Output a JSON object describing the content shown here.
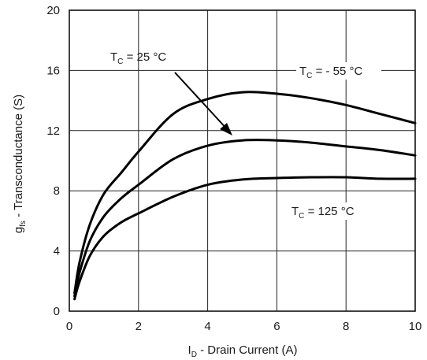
{
  "chart_data": {
    "type": "line",
    "title": "",
    "xlabel": {
      "main": "I",
      "sub": "D",
      "rest": " - Drain Current (A)"
    },
    "ylabel": {
      "main": "g",
      "sub": "fs",
      "rest": " - Transconductance (S)"
    },
    "xlim": [
      0,
      10
    ],
    "ylim": [
      0,
      20
    ],
    "x_ticks": [
      0,
      2,
      4,
      6,
      8,
      10
    ],
    "x_tick_labels": [
      "0",
      "2",
      "4",
      "6",
      "8",
      "10"
    ],
    "y_ticks": [
      0,
      4,
      8,
      12,
      16,
      20
    ],
    "y_tick_labels": [
      "0",
      "4",
      "8",
      "12",
      "16",
      "20"
    ],
    "grid": true,
    "series": [
      {
        "name": "TC = - 55 °C",
        "x": [
          0.15,
          0.3,
          0.6,
          1.0,
          1.5,
          2.0,
          3.0,
          4.0,
          5.0,
          6.0,
          7.0,
          8.0,
          9.0,
          10.0
        ],
        "y": [
          1.2,
          3.3,
          5.8,
          7.8,
          9.2,
          10.6,
          13.1,
          14.1,
          14.55,
          14.45,
          14.15,
          13.7,
          13.1,
          12.5
        ]
      },
      {
        "name": "TC = 25 °C",
        "x": [
          0.15,
          0.3,
          0.6,
          1.0,
          1.5,
          2.0,
          3.0,
          4.0,
          5.0,
          6.0,
          7.0,
          8.0,
          9.0,
          10.0
        ],
        "y": [
          1.0,
          2.6,
          4.7,
          6.3,
          7.5,
          8.4,
          10.1,
          11.0,
          11.35,
          11.35,
          11.2,
          10.95,
          10.7,
          10.35
        ]
      },
      {
        "name": "TC = 125 °C",
        "x": [
          0.15,
          0.3,
          0.6,
          1.0,
          1.5,
          2.0,
          3.0,
          4.0,
          5.0,
          6.0,
          7.0,
          8.0,
          9.0,
          10.0
        ],
        "y": [
          0.8,
          2.0,
          3.7,
          5.0,
          5.9,
          6.5,
          7.6,
          8.4,
          8.75,
          8.85,
          8.9,
          8.9,
          8.8,
          8.8
        ]
      }
    ],
    "annotations": [
      {
        "id": "minus55",
        "main": "T",
        "sub": "C",
        "rest": " = - 55 °C"
      },
      {
        "id": "plus25",
        "main": "T",
        "sub": "C",
        "rest": " = 25 °C"
      },
      {
        "id": "plus125",
        "main": "T",
        "sub": "C",
        "rest": " = 125 °C"
      }
    ]
  }
}
